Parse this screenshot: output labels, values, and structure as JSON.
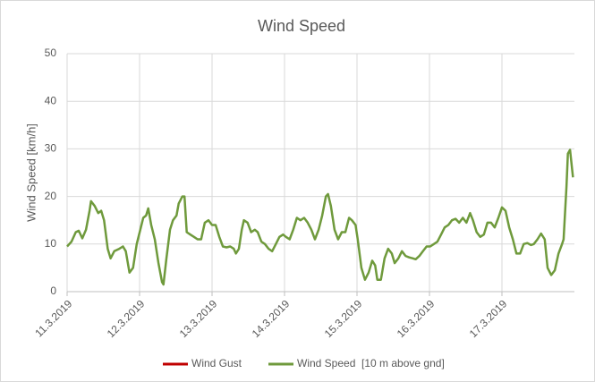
{
  "chart_data": {
    "type": "line",
    "title": "Wind Speed",
    "y_label": "Wind Speed [km/h]",
    "x": [
      0,
      0.06,
      0.12,
      0.16,
      0.21,
      0.26,
      0.31,
      0.33,
      0.38,
      0.43,
      0.47,
      0.51,
      0.56,
      0.6,
      0.65,
      0.72,
      0.77,
      0.81,
      0.86,
      0.91,
      0.96,
      1.01,
      1.05,
      1.09,
      1.12,
      1.16,
      1.21,
      1.26,
      1.31,
      1.33,
      1.37,
      1.42,
      1.46,
      1.51,
      1.54,
      1.59,
      1.62,
      1.65,
      1.7,
      1.75,
      1.8,
      1.85,
      1.9,
      1.95,
      2.0,
      2.05,
      2.1,
      2.15,
      2.2,
      2.25,
      2.3,
      2.33,
      2.37,
      2.41,
      2.44,
      2.49,
      2.54,
      2.59,
      2.63,
      2.68,
      2.73,
      2.78,
      2.83,
      2.88,
      2.93,
      2.98,
      3.02,
      3.07,
      3.12,
      3.17,
      3.22,
      3.27,
      3.32,
      3.37,
      3.42,
      3.47,
      3.52,
      3.57,
      3.6,
      3.64,
      3.69,
      3.74,
      3.79,
      3.84,
      3.89,
      3.93,
      3.98,
      4.01,
      4.06,
      4.11,
      4.16,
      4.21,
      4.25,
      4.28,
      4.33,
      4.38,
      4.43,
      4.48,
      4.52,
      4.57,
      4.62,
      4.67,
      4.72,
      4.77,
      4.81,
      4.86,
      4.91,
      4.96,
      5.01,
      5.06,
      5.11,
      5.16,
      5.21,
      5.26,
      5.31,
      5.36,
      5.41,
      5.46,
      5.51,
      5.56,
      5.6,
      5.65,
      5.7,
      5.75,
      5.8,
      5.85,
      5.9,
      5.95,
      6.0,
      6.05,
      6.1,
      6.15,
      6.2,
      6.25,
      6.3,
      6.35,
      6.4,
      6.44,
      6.49,
      6.54,
      6.59,
      6.63,
      6.68,
      6.73,
      6.78,
      6.83,
      6.85,
      6.89,
      6.91,
      6.94,
      6.98
    ],
    "series": [
      {
        "name": "Wind Gust",
        "color": "#c00000",
        "values": [
          null,
          null,
          null,
          null,
          null,
          null,
          null,
          null,
          null,
          null,
          null,
          null,
          null,
          null,
          null,
          null,
          null,
          null,
          null,
          null,
          null,
          null,
          null,
          null,
          null,
          null,
          null,
          null,
          null,
          null,
          null,
          null,
          null,
          null,
          null,
          null,
          null,
          null,
          null,
          null,
          null,
          null,
          null,
          null,
          null,
          null,
          null,
          null,
          null,
          null,
          null,
          null,
          null,
          null,
          null,
          null,
          null,
          null,
          null,
          null,
          null,
          null,
          null,
          null,
          null,
          null,
          null,
          null,
          null,
          null,
          null,
          null,
          null,
          null,
          null,
          null,
          null,
          null,
          null,
          null,
          null,
          null,
          null,
          null,
          null,
          null,
          null,
          null,
          null,
          null,
          null,
          null,
          null,
          null,
          null,
          null,
          null,
          null,
          null,
          null,
          null,
          null,
          null,
          null,
          null,
          null,
          null,
          null,
          null,
          null,
          null,
          null,
          null,
          null,
          null,
          null,
          null,
          null,
          null,
          null,
          null,
          null,
          null,
          null,
          null,
          null,
          null,
          null,
          null,
          null,
          null,
          null,
          null,
          null,
          null,
          null,
          null,
          null,
          null,
          null,
          null,
          null,
          null,
          null,
          null,
          null,
          null,
          null,
          null,
          null,
          null
        ]
      },
      {
        "name": "Wind Speed  [10 m above gnd]",
        "color": "#6f9a3c",
        "values": [
          9.5,
          10.5,
          12.5,
          12.8,
          11.2,
          13,
          17,
          19,
          18,
          16.5,
          17,
          15,
          9,
          7,
          8.5,
          9,
          9.5,
          8.5,
          4,
          5,
          10,
          13,
          15.5,
          16,
          17.5,
          14,
          11,
          6,
          2,
          1.5,
          7,
          13,
          15,
          16,
          18.5,
          20,
          20,
          12.5,
          12,
          11.5,
          11,
          11,
          14.5,
          15,
          14,
          14,
          11.5,
          9.5,
          9.3,
          9.5,
          9,
          8,
          9,
          13,
          15,
          14.5,
          12.5,
          13,
          12.5,
          10.5,
          10,
          9,
          8.5,
          10,
          11.5,
          12,
          11.5,
          11,
          13,
          15.5,
          15,
          15.5,
          14.5,
          13,
          11,
          13,
          16,
          20,
          20.5,
          18,
          13,
          11,
          12.5,
          12.5,
          15.5,
          15,
          14,
          11,
          5,
          2.5,
          4,
          6.5,
          5.5,
          2.5,
          2.5,
          7,
          9,
          8,
          6,
          7,
          8.5,
          7.5,
          7.2,
          7,
          6.8,
          7.5,
          8.5,
          9.5,
          9.5,
          10,
          10.5,
          12,
          13.5,
          14,
          15,
          15.3,
          14.5,
          15.5,
          14.5,
          16.5,
          15,
          12.5,
          11.5,
          12,
          14.5,
          14.5,
          13.5,
          15.5,
          17.7,
          17,
          13.5,
          11,
          8,
          8,
          10,
          10.2,
          9.8,
          10,
          11,
          12.2,
          11,
          5,
          3.5,
          4.5,
          8,
          10,
          11,
          22,
          29,
          29.8,
          24
        ]
      }
    ],
    "xlim": [
      0,
      7
    ],
    "xticks": [
      {
        "value": 0,
        "label": "11.3.2019"
      },
      {
        "value": 1,
        "label": "12.3.2019"
      },
      {
        "value": 2,
        "label": "13.3.2019"
      },
      {
        "value": 3,
        "label": "14.3.2019"
      },
      {
        "value": 4,
        "label": "15.3.2019"
      },
      {
        "value": 5,
        "label": "16.3.2019"
      },
      {
        "value": 6,
        "label": "17.3.2019"
      }
    ],
    "ylim": [
      0,
      50
    ],
    "yticks": [
      0,
      10,
      20,
      30,
      40,
      50
    ],
    "grid": true,
    "legend": "bottom"
  }
}
